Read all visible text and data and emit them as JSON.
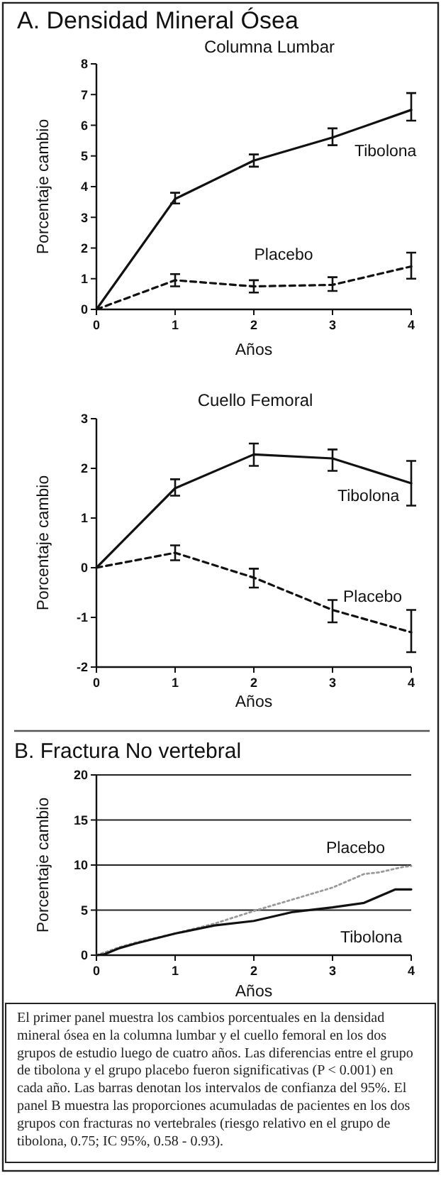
{
  "chart_data": [
    {
      "type": "line",
      "title": "A. Densidad Mineral Ósea",
      "subtitle": "Columna Lumbar",
      "xlabel": "Años",
      "ylabel": "Porcentaje cambio",
      "x": [
        0,
        1,
        2,
        3,
        4
      ],
      "xlim": [
        0,
        4
      ],
      "xticks": [
        0,
        1,
        2,
        3,
        4
      ],
      "ylim": [
        0,
        8
      ],
      "yticks": [
        0,
        1,
        2,
        3,
        4,
        5,
        6,
        7,
        8
      ],
      "series": [
        {
          "name": "Tibolona",
          "color": "#111111",
          "line_style": "solid",
          "values": [
            0,
            3.6,
            4.85,
            5.6,
            6.5
          ],
          "errors": [
            null,
            [
              3.45,
              3.8
            ],
            [
              4.65,
              5.05
            ],
            [
              5.35,
              5.9
            ],
            [
              6.15,
              7.05
            ]
          ]
        },
        {
          "name": "Placebo",
          "color": "#111111",
          "line_style": "dashed",
          "values": [
            0,
            0.95,
            0.75,
            0.8,
            1.4
          ],
          "errors": [
            null,
            [
              0.75,
              1.15
            ],
            [
              0.55,
              0.95
            ],
            [
              0.6,
              1.05
            ],
            [
              1.0,
              1.85
            ]
          ]
        }
      ]
    },
    {
      "type": "line",
      "title": "Cuello Femoral",
      "xlabel": "Años",
      "ylabel": "Porcentaje cambio",
      "x": [
        0,
        1,
        2,
        3,
        4
      ],
      "xlim": [
        0,
        4
      ],
      "xticks": [
        0,
        1,
        2,
        3,
        4
      ],
      "ylim": [
        -2,
        3
      ],
      "yticks": [
        -2,
        -1,
        0,
        1,
        2,
        3
      ],
      "series": [
        {
          "name": "Tibolona",
          "color": "#111111",
          "line_style": "solid",
          "values": [
            0,
            1.6,
            2.28,
            2.2,
            1.7
          ],
          "errors": [
            null,
            [
              1.45,
              1.78
            ],
            [
              2.05,
              2.5
            ],
            [
              1.95,
              2.38
            ],
            [
              1.25,
              2.15
            ]
          ]
        },
        {
          "name": "Placebo",
          "color": "#111111",
          "line_style": "dashed",
          "values": [
            0,
            0.3,
            -0.2,
            -0.85,
            -1.3
          ],
          "errors": [
            null,
            [
              0.15,
              0.45
            ],
            [
              -0.4,
              -0.02
            ],
            [
              -1.1,
              -0.65
            ],
            [
              -1.7,
              -0.85
            ]
          ]
        }
      ]
    },
    {
      "type": "line",
      "title": "B. Fractura No vertebral",
      "xlabel": "Años",
      "ylabel": "Porcentaje cambio",
      "xlim": [
        0,
        4
      ],
      "xticks": [
        0,
        1,
        2,
        3,
        4
      ],
      "ylim": [
        0,
        20
      ],
      "yticks": [
        0,
        5,
        10,
        15,
        20
      ],
      "grid": "y",
      "annotations": [
        "El primer panel muestra los cambios porcentuales en la densidad mineral ósea en la columna lumbar y el cuello femoral en los dos grupos de estudio luego de cuatro años. Las diferencias entre el grupo de tibolona y el grupo placebo fueron significativas (P < 0.001) en cada año. Las barras denotan los intervalos de confianza del 95%. El panel B muestra las proporciones acumuladas de pacientes en los dos grupos con fracturas no vertebrales (riesgo relativo en el grupo de tibolona, 0.75; IC 95%, 0.58 - 0.93)."
      ],
      "series": [
        {
          "name": "Placebo",
          "color": "#999999",
          "line_style": "dotted",
          "x": [
            0,
            0.1,
            0.3,
            0.5,
            1,
            1.5,
            2,
            2.5,
            3,
            3.4,
            3.6,
            3.9,
            4
          ],
          "values": [
            0,
            0.3,
            0.9,
            1.4,
            2.4,
            3.5,
            4.9,
            6.2,
            7.5,
            9.0,
            9.2,
            9.8,
            9.9
          ]
        },
        {
          "name": "Tibolona",
          "color": "#111111",
          "line_style": "solid",
          "x": [
            0,
            0.1,
            0.3,
            0.5,
            1,
            1.5,
            2,
            2.5,
            3,
            3.4,
            3.8,
            4
          ],
          "values": [
            0,
            0.1,
            0.8,
            1.3,
            2.4,
            3.3,
            3.8,
            4.8,
            5.3,
            5.8,
            7.3,
            7.3
          ]
        }
      ]
    }
  ]
}
